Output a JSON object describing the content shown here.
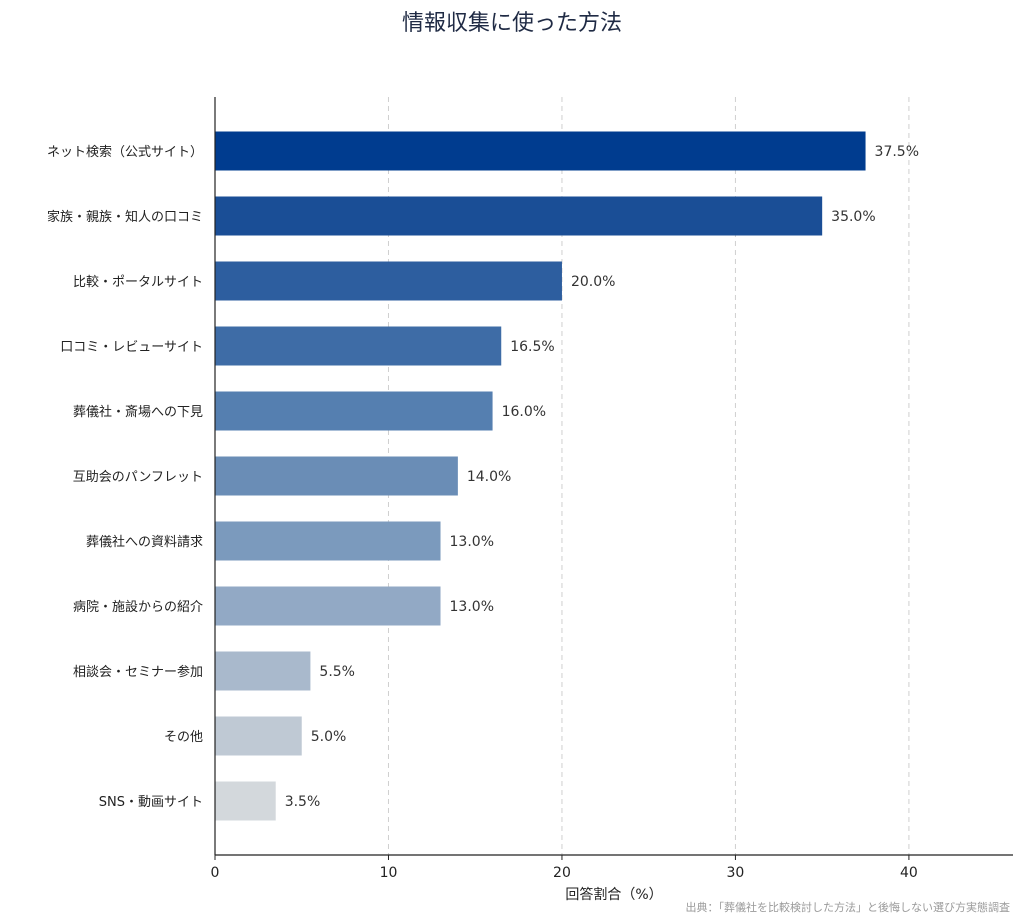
{
  "chart_data": {
    "type": "bar",
    "orientation": "horizontal",
    "title": "情報収集に使った方法",
    "xlabel": "回答割合（%）",
    "source": "出典：「葬儀社を比較検討した方法」と後悔しない選び方実態調査",
    "xlim": [
      0,
      46
    ],
    "xticks": [
      "0",
      "10",
      "20",
      "30",
      "40"
    ],
    "xtick_values": [
      0,
      10,
      20,
      30,
      40
    ],
    "grid": "x-dashed",
    "categories": [
      "ネット検索（公式サイト）",
      "家族・親族・知人の口コミ",
      "比較・ポータルサイト",
      "口コミ・レビューサイト",
      "葬儀社・斎場への下見",
      "互助会のパンフレット",
      "葬儀社への資料請求",
      "病院・施設からの紹介",
      "相談会・セミナー参加",
      "その他",
      "SNS・動画サイト"
    ],
    "values": [
      37.5,
      35.0,
      20.0,
      16.5,
      16.0,
      14.0,
      13.0,
      13.0,
      5.5,
      5.0,
      3.5
    ],
    "value_labels": [
      "37.5%",
      "35.0%",
      "20.0%",
      "16.5%",
      "16.0%",
      "14.0%",
      "13.0%",
      "13.0%",
      "5.5%",
      "5.0%",
      "3.5%"
    ],
    "colors": [
      "#003c8f",
      "#1a4e96",
      "#2d5e9f",
      "#3e6ca6",
      "#557fb0",
      "#6a8db6",
      "#7b9abd",
      "#92a9c5",
      "#a9b9cc",
      "#bfc9d4",
      "#d3d8dc"
    ]
  }
}
